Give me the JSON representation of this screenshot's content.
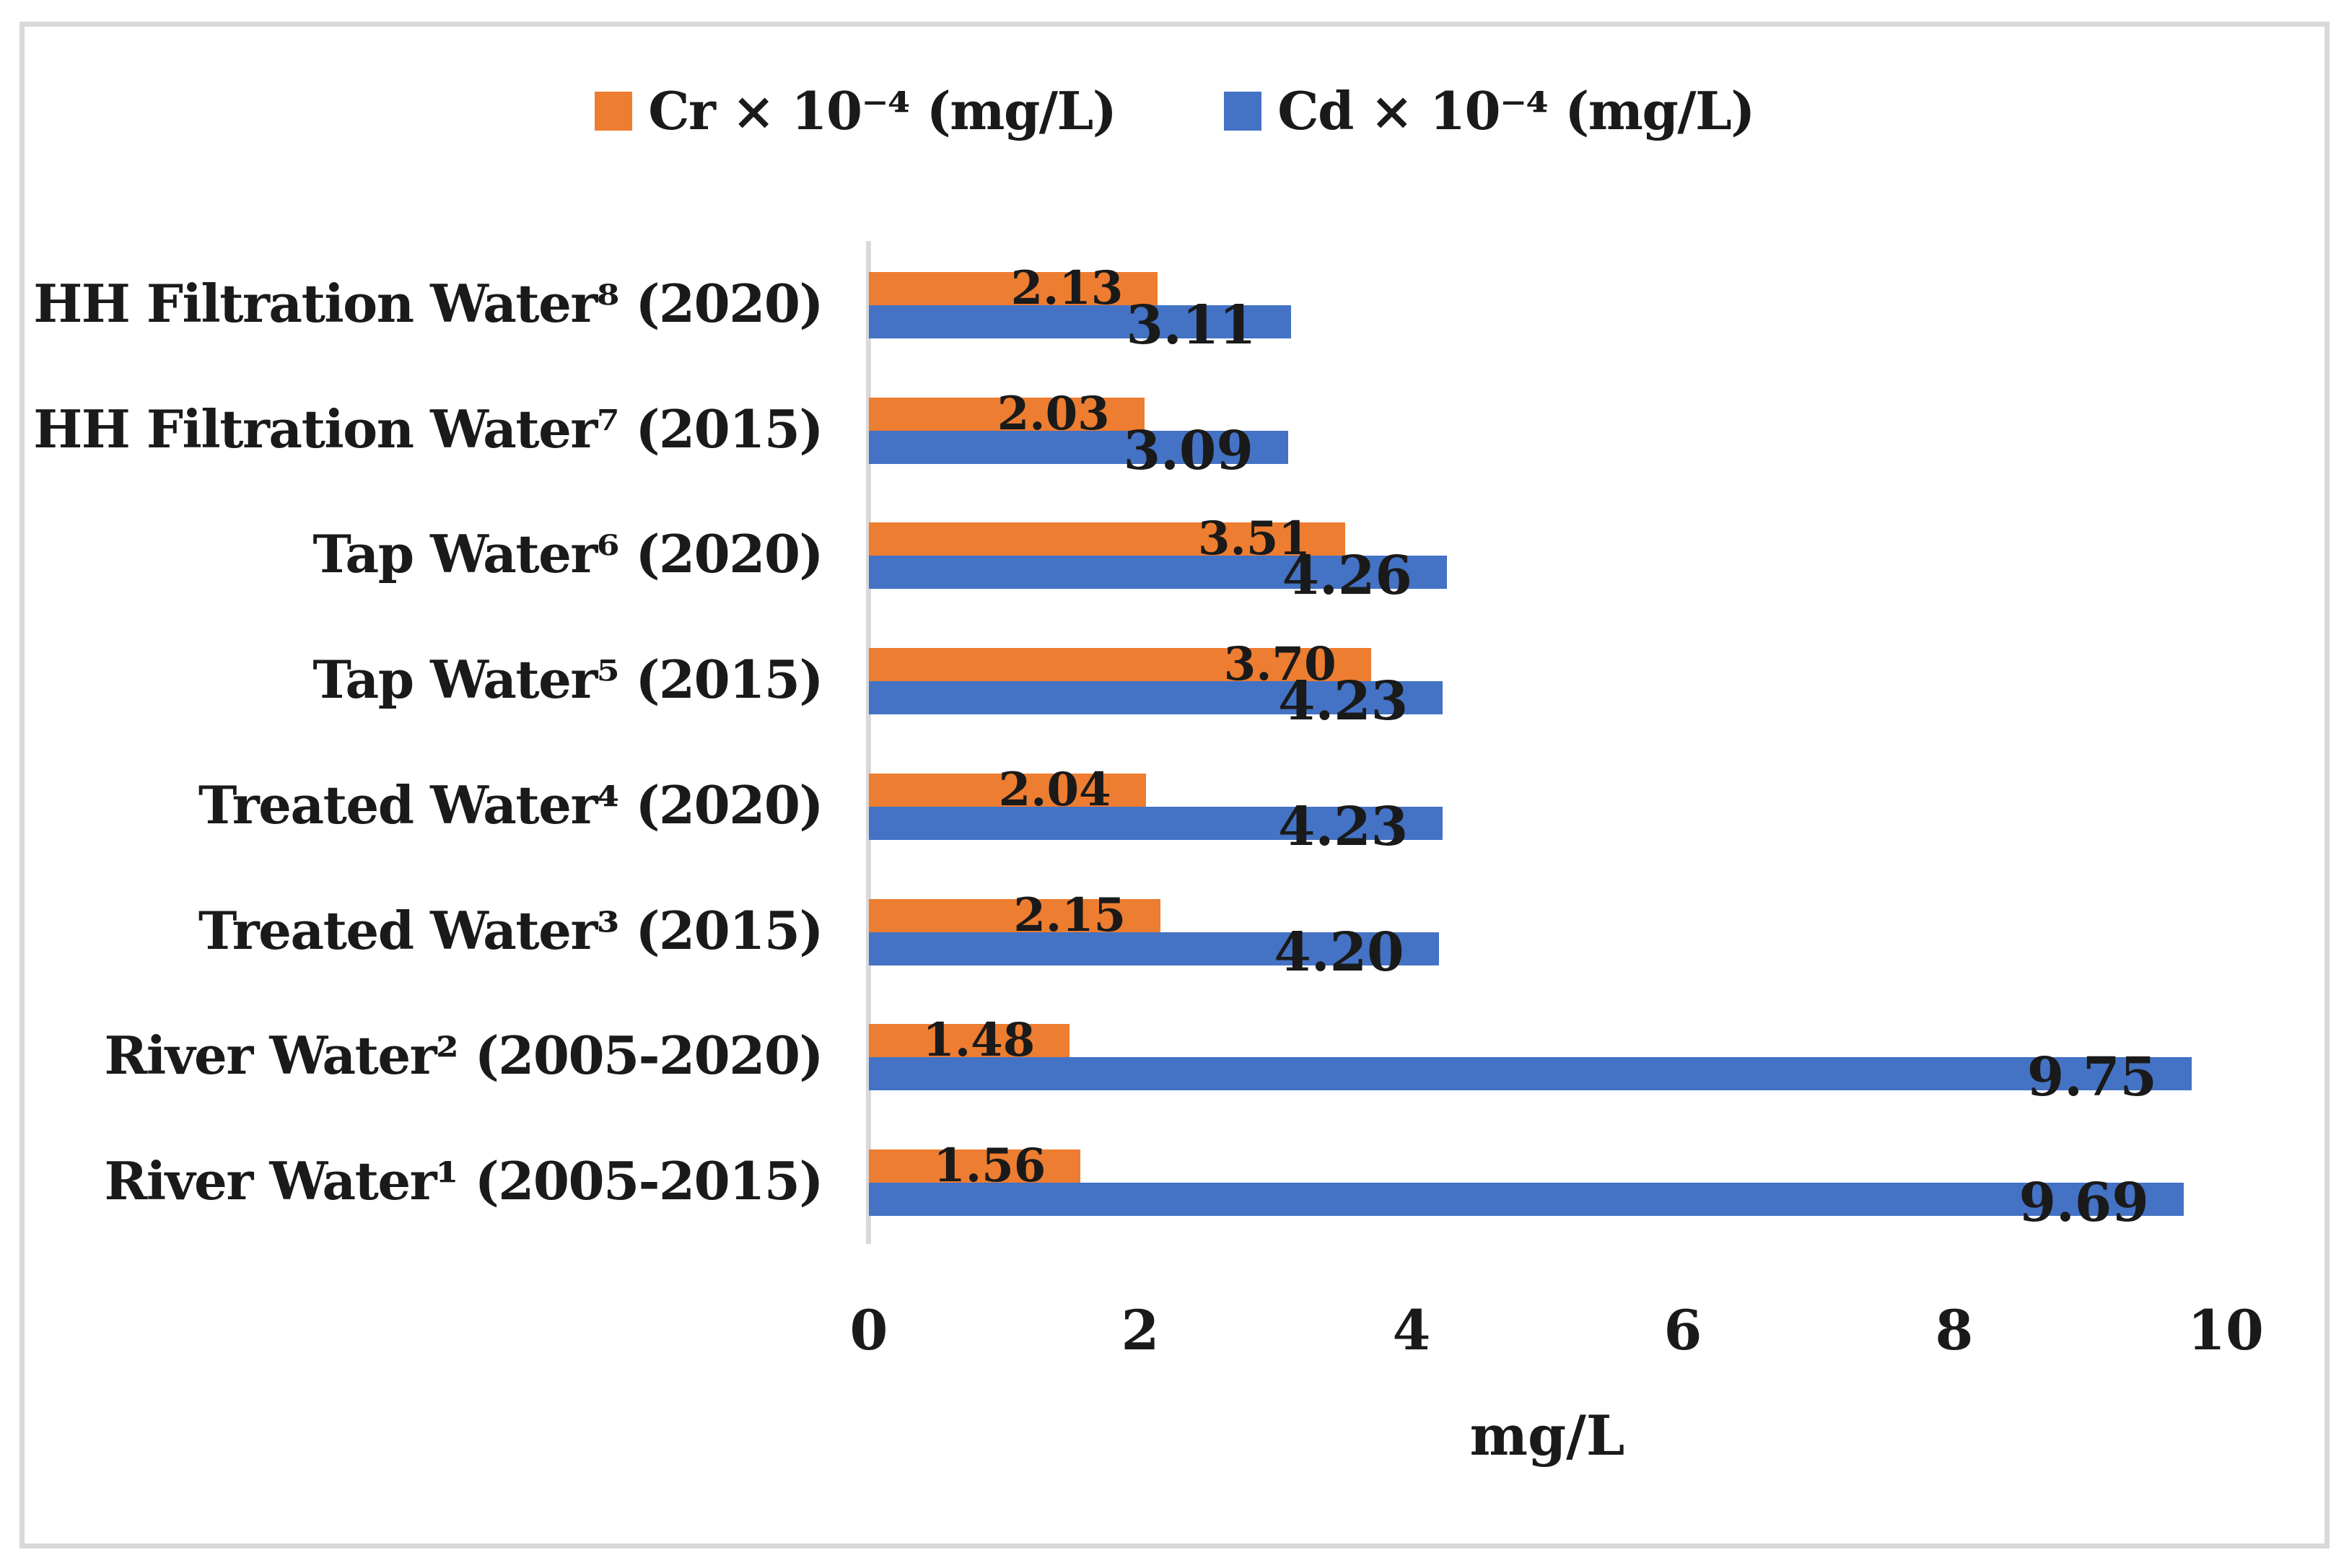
{
  "chart_data": {
    "type": "bar",
    "orientation": "horizontal",
    "title": "",
    "xlabel": "mg/L",
    "xlim": [
      0,
      10
    ],
    "xticks": [
      "0",
      "2",
      "4",
      "6",
      "8",
      "10"
    ],
    "grid": false,
    "legend_position": "top-center",
    "categories": [
      "HH Filtration Water⁸ (2020)",
      "HH Filtration Water⁷ (2015)",
      "Tap Water⁶ (2020)",
      "Tap Water⁵ (2015)",
      "Treated Water⁴ (2020)",
      "Treated Water³ (2015)",
      "River Water² (2005-2020)",
      "River Water¹ (2005-2015)"
    ],
    "series": [
      {
        "name": "Cr × 10⁻⁴ (mg/L)",
        "key": "cr",
        "color": "#ED7D31",
        "values": [
          2.13,
          2.03,
          3.51,
          3.7,
          2.04,
          2.15,
          1.48,
          1.56
        ],
        "labels": [
          "2.13",
          "2.03",
          "3.51",
          "3.70",
          "2.04",
          "2.15",
          "1.48",
          "1.56"
        ]
      },
      {
        "name": "Cd × 10⁻⁴ (mg/L)",
        "key": "cd",
        "color": "#4472C4",
        "values": [
          3.11,
          3.09,
          4.26,
          4.23,
          4.23,
          4.2,
          9.75,
          9.69
        ],
        "labels": [
          "3.11",
          "3.09",
          "4.26",
          "4.23",
          "4.23",
          "4.20",
          "9.75",
          "9.69"
        ]
      }
    ],
    "colors": {
      "axis_line": "#D9D9D9",
      "frame_border": "#D9D9D9",
      "text": "#1a1a1a",
      "background": "#ffffff"
    }
  }
}
